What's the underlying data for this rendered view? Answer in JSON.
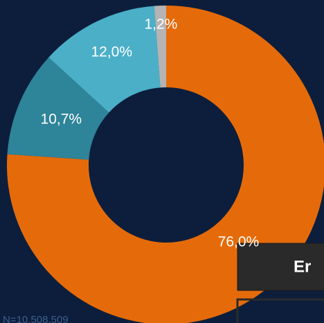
{
  "chart_data": {
    "type": "donut",
    "categories": [
      null,
      null,
      null,
      null
    ],
    "values": [
      76.0,
      10.7,
      12.0,
      1.2
    ],
    "value_labels": [
      "76,0%",
      "10,7%",
      "12,0%",
      "1,2%"
    ],
    "colors": [
      "#e56b0a",
      "#2e8499",
      "#4bafc8",
      "#b4b4b4"
    ],
    "annotations": [
      "N=10.508.509",
      "Er"
    ]
  }
}
